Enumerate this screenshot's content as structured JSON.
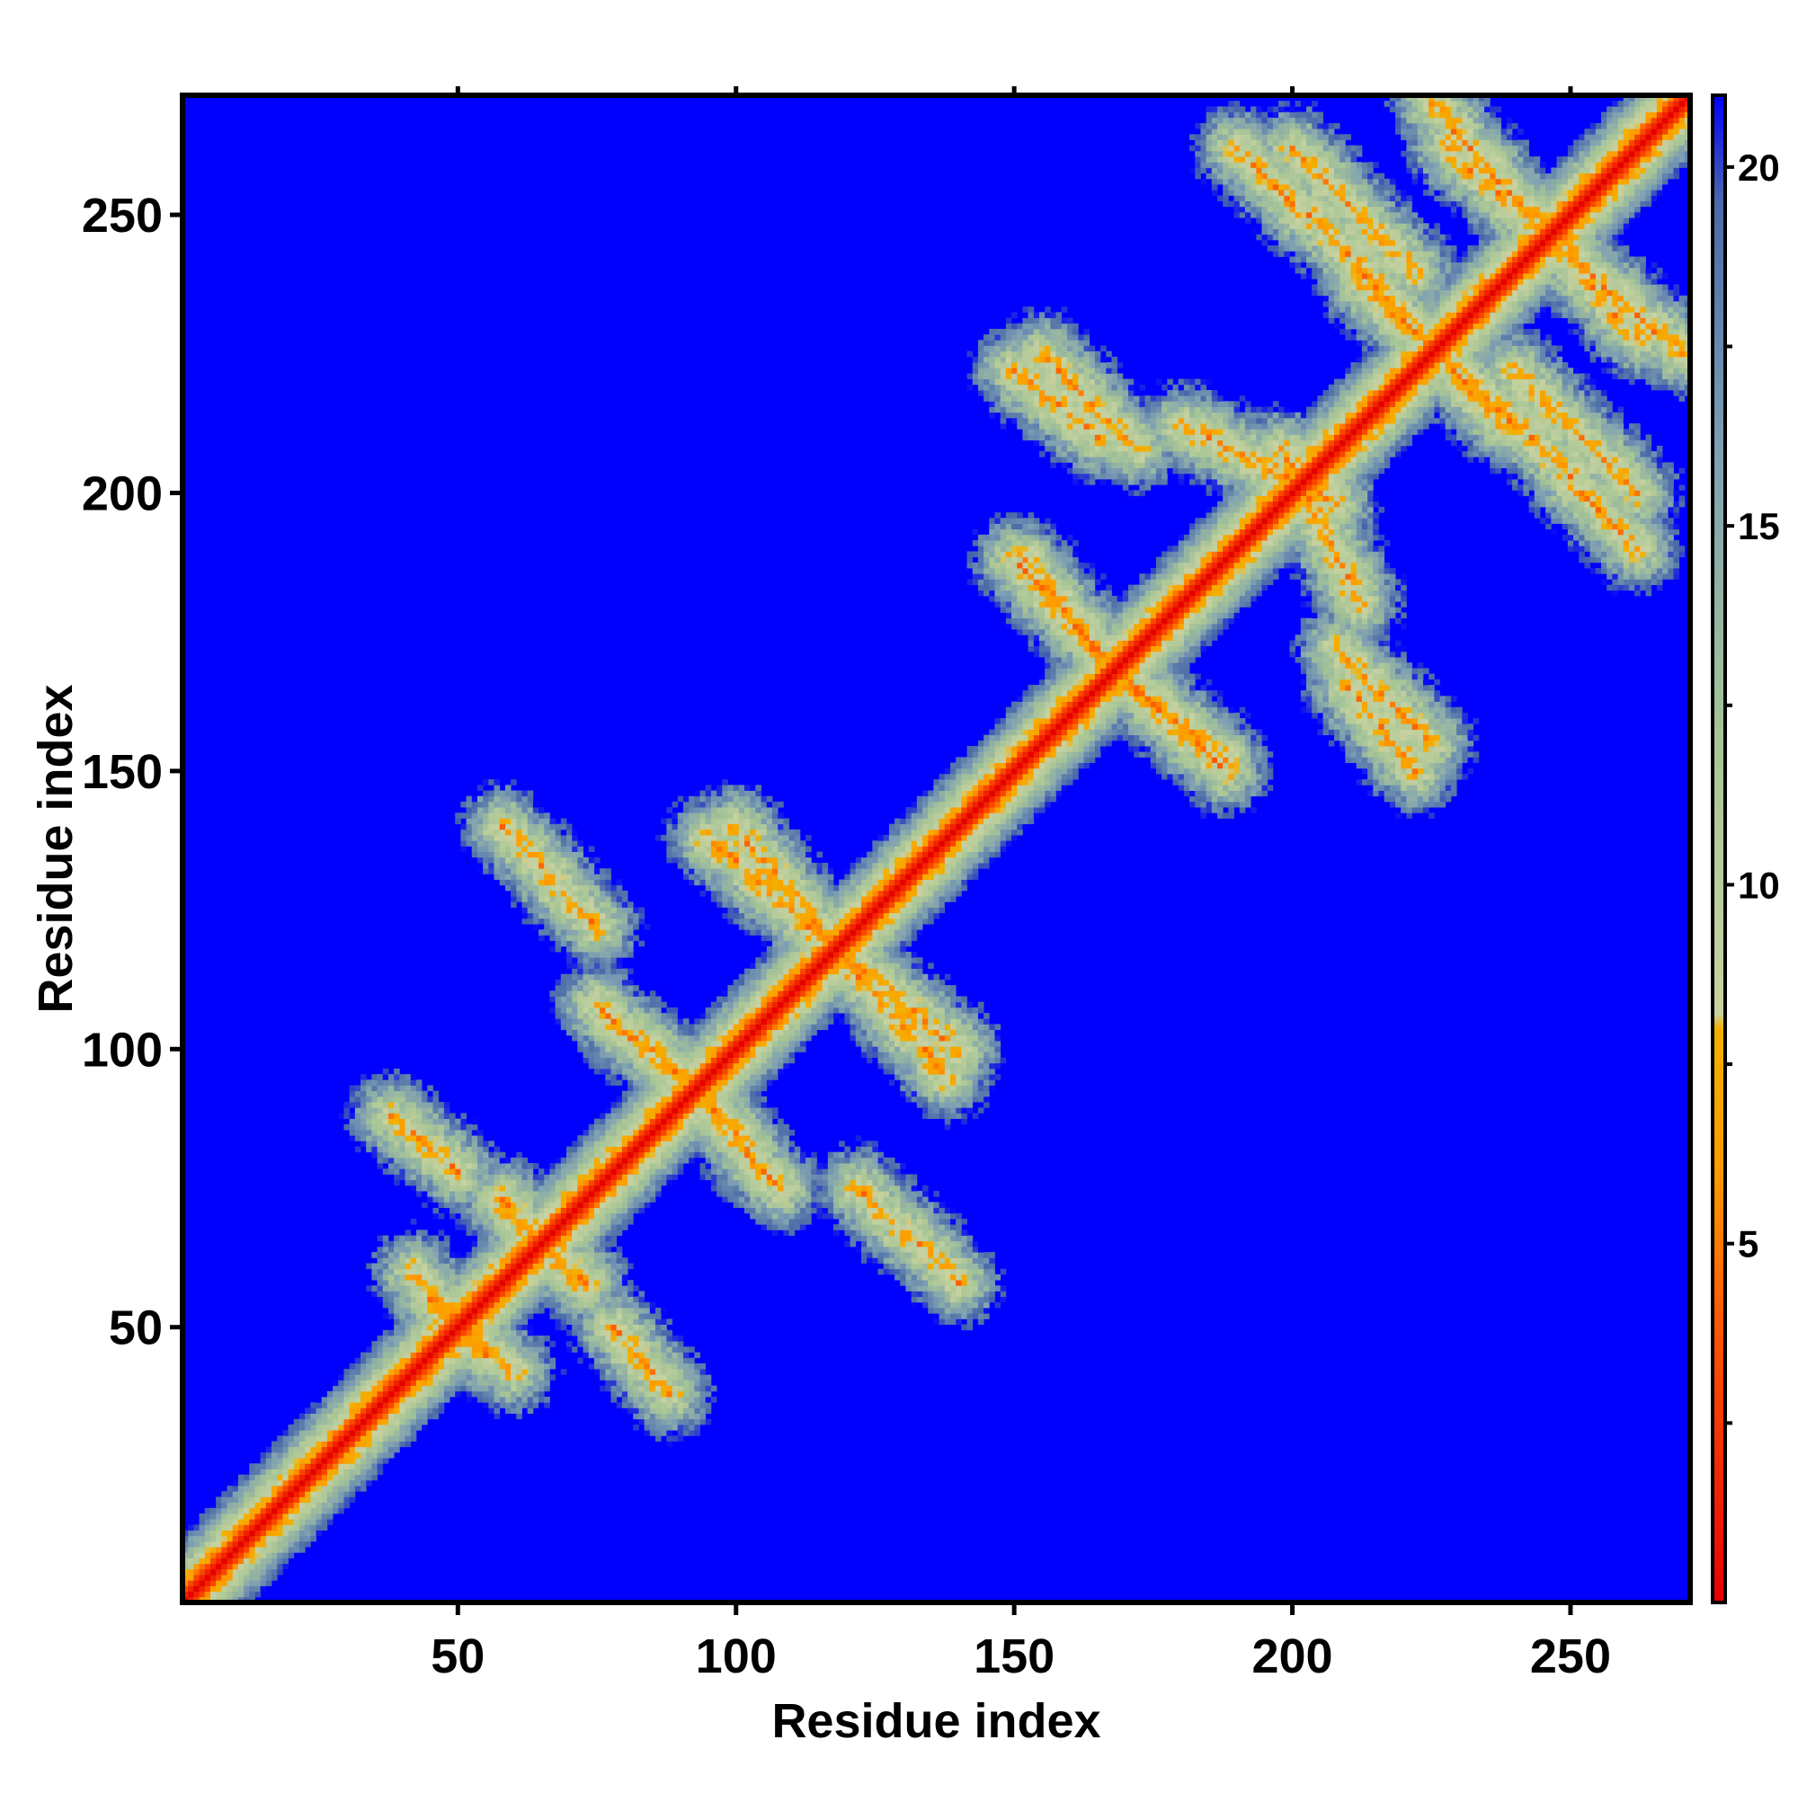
{
  "chart_data": {
    "type": "heatmap",
    "title": "",
    "xlabel": "Residue index",
    "ylabel": "Residue index",
    "xlim": [
      1,
      271
    ],
    "ylim": [
      1,
      271
    ],
    "x_ticks": [
      50,
      100,
      150,
      200,
      250
    ],
    "y_ticks": [
      50,
      100,
      150,
      200,
      250
    ],
    "x_tick_labels": [
      "50",
      "100",
      "150",
      "200",
      "250"
    ],
    "y_tick_labels": [
      "50",
      "100",
      "150",
      "200",
      "250"
    ],
    "value_scale": {
      "min": 0,
      "max": 21,
      "cap_color": "#0000ff"
    },
    "colorbar": {
      "ticks": [
        5,
        10,
        15,
        20
      ],
      "tick_labels": [
        "5",
        "10",
        "15",
        "20"
      ],
      "stops": [
        {
          "value": 0,
          "color": "#e60000"
        },
        {
          "value": 4,
          "color": "#ff5a00"
        },
        {
          "value": 6,
          "color": "#ff9a00"
        },
        {
          "value": 8,
          "color": "#f3b000"
        },
        {
          "value": 8.2,
          "color": "#c8d2a0"
        },
        {
          "value": 12,
          "color": "#a7c596"
        },
        {
          "value": 16,
          "color": "#7fa0b2"
        },
        {
          "value": 19.5,
          "color": "#4a6aa9"
        },
        {
          "value": 21,
          "color": "#0000ff"
        }
      ]
    },
    "structure": {
      "diagonal": {
        "description_values": "distance ~0-4 along i=j"
      },
      "contact_bands": [
        {
          "x_start": 45,
          "y_start": 55,
          "x_end": 60,
          "y_end": 42,
          "type": "antiparallel"
        },
        {
          "x_start": 58,
          "y_start": 73,
          "x_end": 72,
          "y_end": 58,
          "type": "antiparallel"
        },
        {
          "x_start": 78,
          "y_start": 50,
          "x_end": 88,
          "y_end": 38,
          "type": "antiparallel"
        },
        {
          "x_start": 85,
          "y_start": 100,
          "x_end": 108,
          "y_end": 75,
          "type": "antiparallel"
        },
        {
          "x_start": 100,
          "y_start": 140,
          "x_end": 118,
          "y_end": 118,
          "type": "antiparallel"
        },
        {
          "x_start": 118,
          "y_start": 118,
          "x_end": 138,
          "y_end": 95,
          "type": "antiparallel"
        },
        {
          "x_start": 122,
          "y_start": 75,
          "x_end": 140,
          "y_end": 58,
          "type": "antiparallel"
        },
        {
          "x_start": 152,
          "y_start": 188,
          "x_end": 168,
          "y_end": 168,
          "type": "antiparallel"
        },
        {
          "x_start": 168,
          "y_start": 168,
          "x_end": 188,
          "y_end": 150,
          "type": "antiparallel"
        },
        {
          "x_start": 155,
          "y_start": 225,
          "x_end": 172,
          "y_end": 208,
          "type": "antiparallel"
        },
        {
          "x_start": 198,
          "y_start": 208,
          "x_end": 212,
          "y_end": 180,
          "type": "antiparallel"
        },
        {
          "x_start": 210,
          "y_start": 165,
          "x_end": 222,
          "y_end": 150,
          "type": "antiparallel"
        },
        {
          "x_start": 200,
          "y_start": 262,
          "x_end": 222,
          "y_end": 240,
          "type": "antiparallel"
        },
        {
          "x_start": 212,
          "y_start": 240,
          "x_end": 238,
          "y_end": 212,
          "type": "antiparallel"
        },
        {
          "x_start": 228,
          "y_start": 262,
          "x_end": 270,
          "y_end": 225,
          "type": "antiparallel"
        },
        {
          "x_start": 238,
          "y_start": 215,
          "x_end": 262,
          "y_end": 190,
          "type": "antiparallel"
        }
      ]
    }
  }
}
